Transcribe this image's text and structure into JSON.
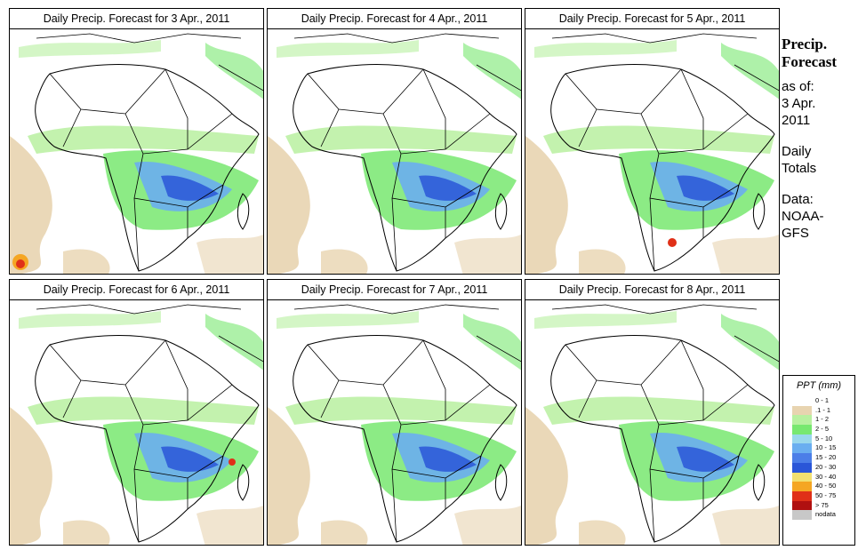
{
  "panels": [
    {
      "title": "Daily Precip. Forecast for  3 Apr., 2011"
    },
    {
      "title": "Daily Precip. Forecast for  4 Apr., 2011"
    },
    {
      "title": "Daily Precip. Forecast for  5 Apr., 2011"
    },
    {
      "title": "Daily Precip. Forecast for  6 Apr., 2011"
    },
    {
      "title": "Daily Precip. Forecast for  7 Apr., 2011"
    },
    {
      "title": "Daily Precip. Forecast for  8 Apr., 2011"
    }
  ],
  "info": {
    "title_line1": "Precip.",
    "title_line2": "Forecast",
    "asof_label": "as of:",
    "date_line1": "3 Apr.",
    "date_line2": "2011",
    "daily_line1": "Daily",
    "daily_line2": "Totals",
    "data_line1": "Data:",
    "data_line2": "NOAA-",
    "data_line3": "GFS"
  },
  "legend": {
    "title": "PPT (mm)",
    "items": [
      {
        "label": "0 - 1",
        "color": "#ffffff"
      },
      {
        "label": ".1 - 1",
        "color": "#e8d4b0"
      },
      {
        "label": "1 - 2",
        "color": "#b8f0a0"
      },
      {
        "label": "2 - 5",
        "color": "#78e870"
      },
      {
        "label": "5 - 10",
        "color": "#9ad8ec"
      },
      {
        "label": "10 - 15",
        "color": "#6aaef0"
      },
      {
        "label": "15 - 20",
        "color": "#4b7ee8"
      },
      {
        "label": "20 - 30",
        "color": "#2a56d8"
      },
      {
        "label": "30 - 40",
        "color": "#f2e070"
      },
      {
        "label": "40 - 50",
        "color": "#f5a623"
      },
      {
        "label": "50 - 75",
        "color": "#e03018"
      },
      {
        "label": "> 75",
        "color": "#b01010"
      },
      {
        "label": "nodata",
        "color": "#c8c8c8"
      }
    ]
  }
}
